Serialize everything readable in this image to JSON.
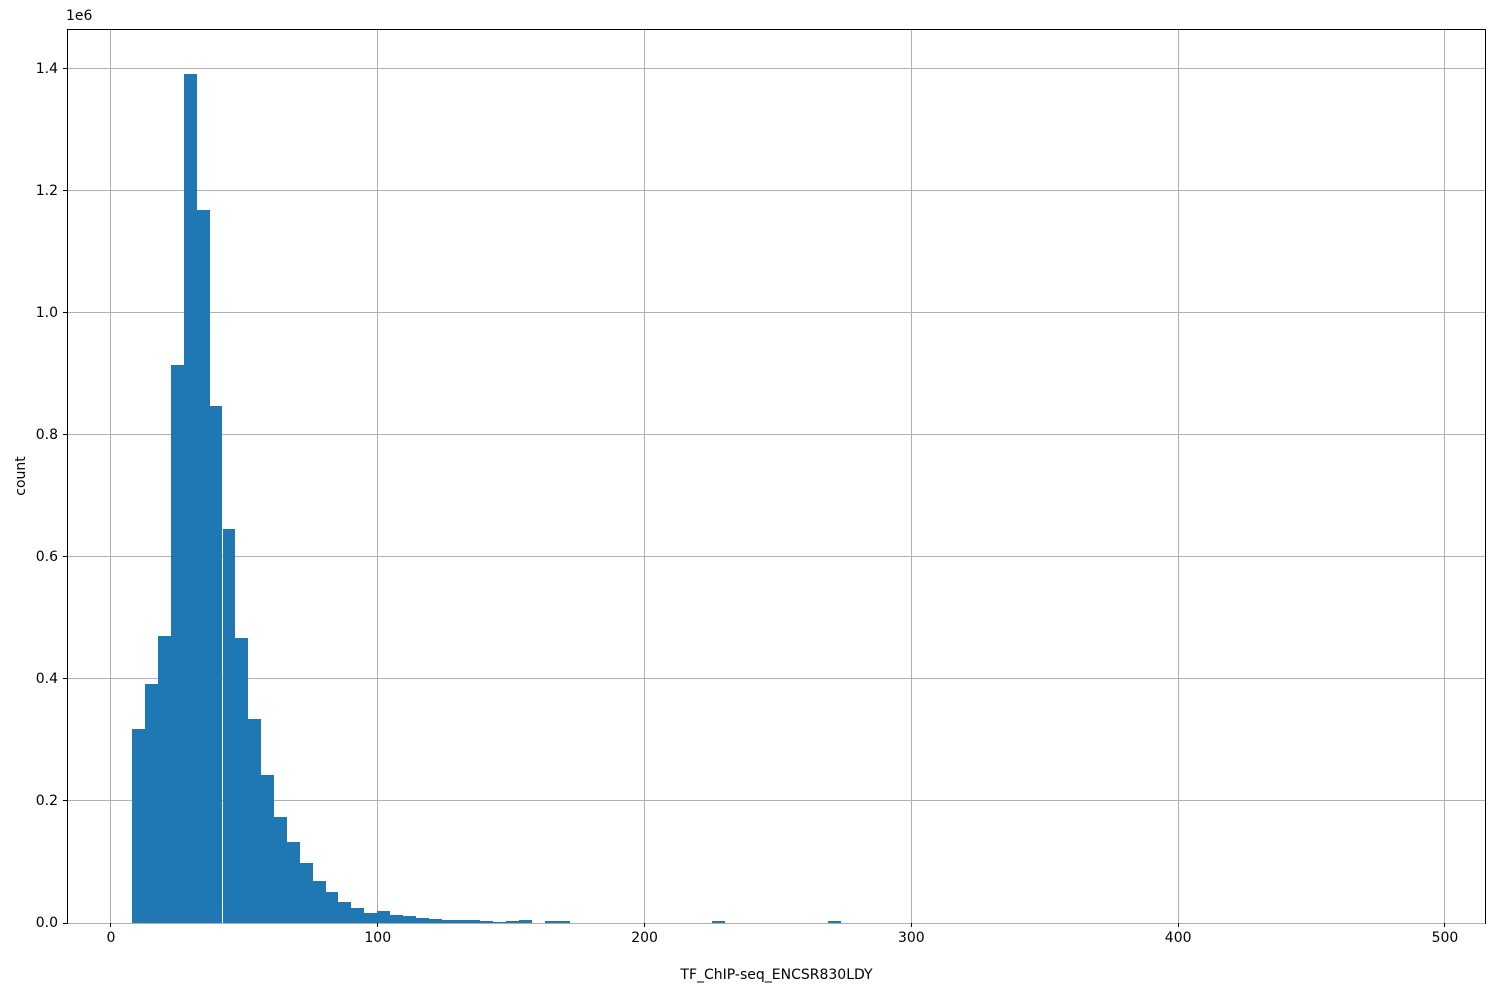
{
  "chart_data": {
    "type": "bar",
    "subtype": "histogram",
    "title": "",
    "xlabel": "TF_ChIP-seq_ENCSR830LDY",
    "ylabel": "count",
    "y_offset_text": "1e6",
    "bar_color": "#1f77b4",
    "grid": true,
    "grid_color": "#b0b0b0",
    "legend": "none",
    "xlim": [
      -16.1,
      515.0
    ],
    "ylim": [
      0,
      1463600
    ],
    "x_ticks": [
      0,
      100,
      200,
      300,
      400,
      500
    ],
    "x_tick_labels": [
      "0",
      "100",
      "200",
      "300",
      "400",
      "500"
    ],
    "y_ticks": [
      0,
      200000,
      400000,
      600000,
      800000,
      1000000,
      1200000,
      1400000
    ],
    "y_tick_labels": [
      "0.0",
      "0.2",
      "0.4",
      "0.6",
      "0.8",
      "1.0",
      "1.2",
      "1.4"
    ],
    "bin_width": 4.83,
    "bins_range": [
      8.0,
      491.0
    ],
    "zero_count_bins_omitted": true,
    "bins": [
      {
        "x0": 8.0,
        "x1": 12.83,
        "count": 318000
      },
      {
        "x0": 12.83,
        "x1": 17.66,
        "count": 391000
      },
      {
        "x0": 17.66,
        "x1": 22.49,
        "count": 470000
      },
      {
        "x0": 22.49,
        "x1": 27.32,
        "count": 915000
      },
      {
        "x0": 27.32,
        "x1": 32.15,
        "count": 1392000
      },
      {
        "x0": 32.15,
        "x1": 36.98,
        "count": 1169000
      },
      {
        "x0": 36.98,
        "x1": 41.81,
        "count": 847000
      },
      {
        "x0": 41.81,
        "x1": 46.64,
        "count": 646000
      },
      {
        "x0": 46.64,
        "x1": 51.47,
        "count": 467000
      },
      {
        "x0": 51.47,
        "x1": 56.3,
        "count": 334000
      },
      {
        "x0": 56.3,
        "x1": 61.13,
        "count": 242000
      },
      {
        "x0": 61.13,
        "x1": 65.96,
        "count": 174000
      },
      {
        "x0": 65.96,
        "x1": 70.79,
        "count": 133000
      },
      {
        "x0": 70.79,
        "x1": 75.62,
        "count": 98000
      },
      {
        "x0": 75.62,
        "x1": 80.45,
        "count": 69000
      },
      {
        "x0": 80.45,
        "x1": 85.28,
        "count": 51000
      },
      {
        "x0": 85.28,
        "x1": 90.11,
        "count": 35000
      },
      {
        "x0": 90.11,
        "x1": 94.94,
        "count": 24000
      },
      {
        "x0": 94.94,
        "x1": 99.77,
        "count": 16500
      },
      {
        "x0": 99.77,
        "x1": 104.6,
        "count": 20000
      },
      {
        "x0": 104.6,
        "x1": 109.43,
        "count": 13000
      },
      {
        "x0": 109.43,
        "x1": 114.26,
        "count": 11400
      },
      {
        "x0": 114.26,
        "x1": 119.09,
        "count": 8200
      },
      {
        "x0": 119.09,
        "x1": 123.92,
        "count": 6000
      },
      {
        "x0": 123.92,
        "x1": 128.75,
        "count": 4400
      },
      {
        "x0": 128.75,
        "x1": 133.58,
        "count": 4400
      },
      {
        "x0": 133.58,
        "x1": 138.41,
        "count": 4400
      },
      {
        "x0": 138.41,
        "x1": 143.24,
        "count": 3500
      },
      {
        "x0": 143.24,
        "x1": 148.07,
        "count": 2100
      },
      {
        "x0": 148.07,
        "x1": 152.9,
        "count": 2700
      },
      {
        "x0": 152.9,
        "x1": 157.73,
        "count": 4400
      },
      {
        "x0": 162.56,
        "x1": 167.39,
        "count": 2800
      },
      {
        "x0": 167.39,
        "x1": 172.22,
        "count": 2800
      },
      {
        "x0": 225.35,
        "x1": 230.18,
        "count": 3000
      },
      {
        "x0": 268.82,
        "x1": 273.65,
        "count": 3000
      }
    ]
  }
}
